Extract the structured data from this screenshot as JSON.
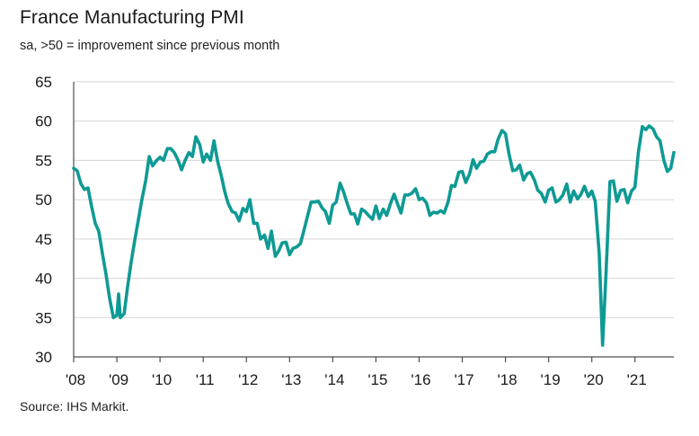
{
  "chart_data": {
    "type": "line",
    "title": "France Manufacturing PMI",
    "subtitle": "sa, >50 = improvement since previous month",
    "source": "Source: IHS Markit.",
    "xlabel": "",
    "ylabel": "",
    "ylim": [
      30,
      65
    ],
    "yticks": [
      "65",
      "60",
      "55",
      "50",
      "45",
      "40",
      "35",
      "30"
    ],
    "ytick_values": [
      65,
      60,
      55,
      50,
      45,
      40,
      35,
      30
    ],
    "xticks": [
      "'08",
      "'09",
      "'10",
      "'11",
      "'12",
      "'13",
      "'14",
      "'15",
      "'16",
      "'17",
      "'18",
      "'19",
      "'20",
      "'21"
    ],
    "xtick_values": [
      2008,
      2009,
      2010,
      2011,
      2012,
      2013,
      2014,
      2015,
      2016,
      2017,
      2018,
      2019,
      2020,
      2021
    ],
    "xlim": [
      2008,
      2021.9
    ],
    "grid": "horizontal",
    "line_color": "#0e9a94",
    "series": [
      {
        "name": "France Manufacturing PMI",
        "points": [
          [
            2008.0,
            54.0
          ],
          [
            2008.08,
            53.7
          ],
          [
            2008.17,
            52.0
          ],
          [
            2008.25,
            51.3
          ],
          [
            2008.33,
            51.5
          ],
          [
            2008.42,
            49.0
          ],
          [
            2008.5,
            47.0
          ],
          [
            2008.58,
            46.0
          ],
          [
            2008.67,
            43.0
          ],
          [
            2008.75,
            40.5
          ],
          [
            2008.83,
            37.5
          ],
          [
            2008.92,
            35.0
          ],
          [
            2009.0,
            35.3
          ],
          [
            2009.04,
            38.0
          ],
          [
            2009.08,
            35.0
          ],
          [
            2009.17,
            35.5
          ],
          [
            2009.25,
            39.0
          ],
          [
            2009.33,
            42.0
          ],
          [
            2009.42,
            45.0
          ],
          [
            2009.5,
            47.5
          ],
          [
            2009.58,
            50.0
          ],
          [
            2009.67,
            52.5
          ],
          [
            2009.75,
            55.5
          ],
          [
            2009.83,
            54.3
          ],
          [
            2009.92,
            55.0
          ],
          [
            2010.0,
            55.4
          ],
          [
            2010.08,
            55.0
          ],
          [
            2010.17,
            56.5
          ],
          [
            2010.25,
            56.5
          ],
          [
            2010.33,
            56.0
          ],
          [
            2010.42,
            55.0
          ],
          [
            2010.5,
            53.8
          ],
          [
            2010.58,
            55.0
          ],
          [
            2010.67,
            56.0
          ],
          [
            2010.75,
            55.5
          ],
          [
            2010.83,
            58.0
          ],
          [
            2010.92,
            57.0
          ],
          [
            2011.0,
            54.8
          ],
          [
            2011.08,
            55.8
          ],
          [
            2011.17,
            55.0
          ],
          [
            2011.25,
            57.5
          ],
          [
            2011.33,
            55.0
          ],
          [
            2011.42,
            53.0
          ],
          [
            2011.5,
            51.0
          ],
          [
            2011.58,
            49.5
          ],
          [
            2011.67,
            48.5
          ],
          [
            2011.75,
            48.3
          ],
          [
            2011.83,
            47.3
          ],
          [
            2011.92,
            48.9
          ],
          [
            2012.0,
            48.5
          ],
          [
            2012.08,
            50.0
          ],
          [
            2012.17,
            47.0
          ],
          [
            2012.25,
            47.0
          ],
          [
            2012.33,
            45.0
          ],
          [
            2012.42,
            45.5
          ],
          [
            2012.5,
            43.8
          ],
          [
            2012.58,
            46.0
          ],
          [
            2012.67,
            42.8
          ],
          [
            2012.75,
            43.5
          ],
          [
            2012.83,
            44.5
          ],
          [
            2012.92,
            44.6
          ],
          [
            2013.0,
            43.0
          ],
          [
            2013.08,
            43.8
          ],
          [
            2013.17,
            44.0
          ],
          [
            2013.25,
            44.4
          ],
          [
            2013.33,
            46.0
          ],
          [
            2013.42,
            48.0
          ],
          [
            2013.5,
            49.7
          ],
          [
            2013.58,
            49.7
          ],
          [
            2013.67,
            49.8
          ],
          [
            2013.75,
            49.0
          ],
          [
            2013.83,
            48.5
          ],
          [
            2013.92,
            47.0
          ],
          [
            2014.0,
            49.3
          ],
          [
            2014.08,
            49.7
          ],
          [
            2014.17,
            52.1
          ],
          [
            2014.25,
            51.0
          ],
          [
            2014.33,
            49.6
          ],
          [
            2014.42,
            48.2
          ],
          [
            2014.5,
            48.2
          ],
          [
            2014.58,
            46.9
          ],
          [
            2014.67,
            48.8
          ],
          [
            2014.75,
            48.5
          ],
          [
            2014.83,
            48.0
          ],
          [
            2014.92,
            47.5
          ],
          [
            2015.0,
            49.2
          ],
          [
            2015.08,
            47.6
          ],
          [
            2015.17,
            48.8
          ],
          [
            2015.25,
            48.0
          ],
          [
            2015.33,
            49.4
          ],
          [
            2015.42,
            50.7
          ],
          [
            2015.5,
            49.5
          ],
          [
            2015.58,
            48.3
          ],
          [
            2015.67,
            50.6
          ],
          [
            2015.75,
            50.6
          ],
          [
            2015.83,
            50.8
          ],
          [
            2015.92,
            51.4
          ],
          [
            2016.0,
            50.0
          ],
          [
            2016.08,
            50.2
          ],
          [
            2016.17,
            49.6
          ],
          [
            2016.25,
            48.0
          ],
          [
            2016.33,
            48.4
          ],
          [
            2016.42,
            48.3
          ],
          [
            2016.5,
            48.6
          ],
          [
            2016.58,
            48.3
          ],
          [
            2016.67,
            49.7
          ],
          [
            2016.75,
            51.8
          ],
          [
            2016.83,
            51.7
          ],
          [
            2016.92,
            53.5
          ],
          [
            2017.0,
            53.6
          ],
          [
            2017.08,
            52.2
          ],
          [
            2017.17,
            53.3
          ],
          [
            2017.25,
            55.1
          ],
          [
            2017.33,
            54.0
          ],
          [
            2017.42,
            54.8
          ],
          [
            2017.5,
            54.9
          ],
          [
            2017.58,
            55.8
          ],
          [
            2017.67,
            56.1
          ],
          [
            2017.75,
            56.1
          ],
          [
            2017.83,
            57.7
          ],
          [
            2017.92,
            58.8
          ],
          [
            2018.0,
            58.4
          ],
          [
            2018.08,
            55.9
          ],
          [
            2018.17,
            53.7
          ],
          [
            2018.25,
            53.8
          ],
          [
            2018.33,
            54.4
          ],
          [
            2018.42,
            52.5
          ],
          [
            2018.5,
            53.3
          ],
          [
            2018.58,
            53.5
          ],
          [
            2018.67,
            52.5
          ],
          [
            2018.75,
            51.2
          ],
          [
            2018.83,
            50.8
          ],
          [
            2018.92,
            49.7
          ],
          [
            2019.0,
            51.2
          ],
          [
            2019.08,
            51.5
          ],
          [
            2019.17,
            49.7
          ],
          [
            2019.25,
            50.0
          ],
          [
            2019.33,
            50.6
          ],
          [
            2019.42,
            52.0
          ],
          [
            2019.5,
            49.7
          ],
          [
            2019.58,
            51.1
          ],
          [
            2019.67,
            50.1
          ],
          [
            2019.75,
            50.7
          ],
          [
            2019.83,
            51.7
          ],
          [
            2019.92,
            50.4
          ],
          [
            2020.0,
            51.1
          ],
          [
            2020.08,
            49.8
          ],
          [
            2020.17,
            43.2
          ],
          [
            2020.25,
            31.5
          ],
          [
            2020.33,
            40.6
          ],
          [
            2020.42,
            52.3
          ],
          [
            2020.5,
            52.4
          ],
          [
            2020.58,
            49.8
          ],
          [
            2020.67,
            51.2
          ],
          [
            2020.75,
            51.3
          ],
          [
            2020.83,
            49.6
          ],
          [
            2020.92,
            51.1
          ],
          [
            2021.0,
            51.6
          ],
          [
            2021.08,
            56.1
          ],
          [
            2021.17,
            59.3
          ],
          [
            2021.25,
            58.9
          ],
          [
            2021.33,
            59.4
          ],
          [
            2021.42,
            59.0
          ],
          [
            2021.5,
            58.0
          ],
          [
            2021.58,
            57.5
          ],
          [
            2021.67,
            55.0
          ],
          [
            2021.75,
            53.6
          ],
          [
            2021.83,
            54.0
          ],
          [
            2021.9,
            56.0
          ]
        ]
      }
    ]
  }
}
